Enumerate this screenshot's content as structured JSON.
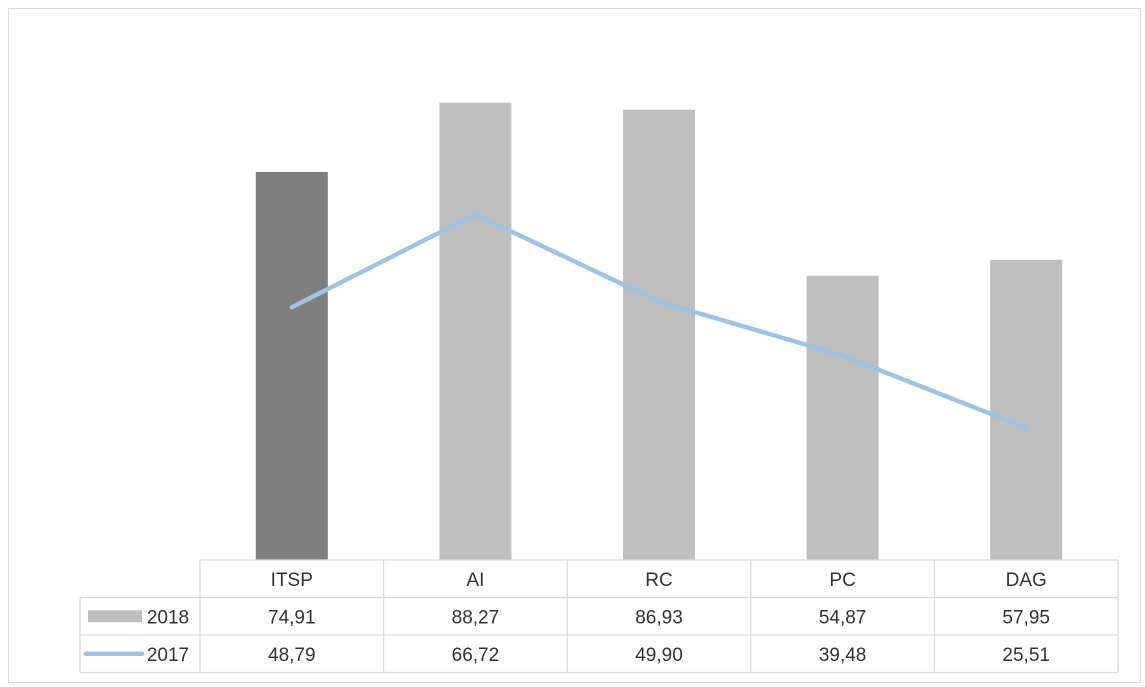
{
  "chart_data": {
    "type": "bar",
    "categories": [
      "ITSP",
      "AI",
      "RC",
      "PC",
      "DAG"
    ],
    "series": [
      {
        "name": "2018",
        "kind": "bar",
        "values": [
          74.91,
          88.27,
          86.93,
          54.87,
          57.95
        ],
        "labels": [
          "74,91",
          "88,27",
          "86,93",
          "54,87",
          "57,95"
        ],
        "color": "#bfbfbf",
        "highlight_color": "#7f7f7f",
        "highlight_category": "ITSP"
      },
      {
        "name": "2017",
        "kind": "line",
        "values": [
          48.79,
          66.72,
          49.9,
          39.48,
          25.51
        ],
        "labels": [
          "48,79",
          "66,72",
          "49,90",
          "39,48",
          "25,51"
        ],
        "color": "#9dc3e6"
      }
    ],
    "ylim": [
      0,
      100
    ],
    "grid": false,
    "legend": "data-table",
    "title": "",
    "xlabel": "",
    "ylabel": ""
  }
}
